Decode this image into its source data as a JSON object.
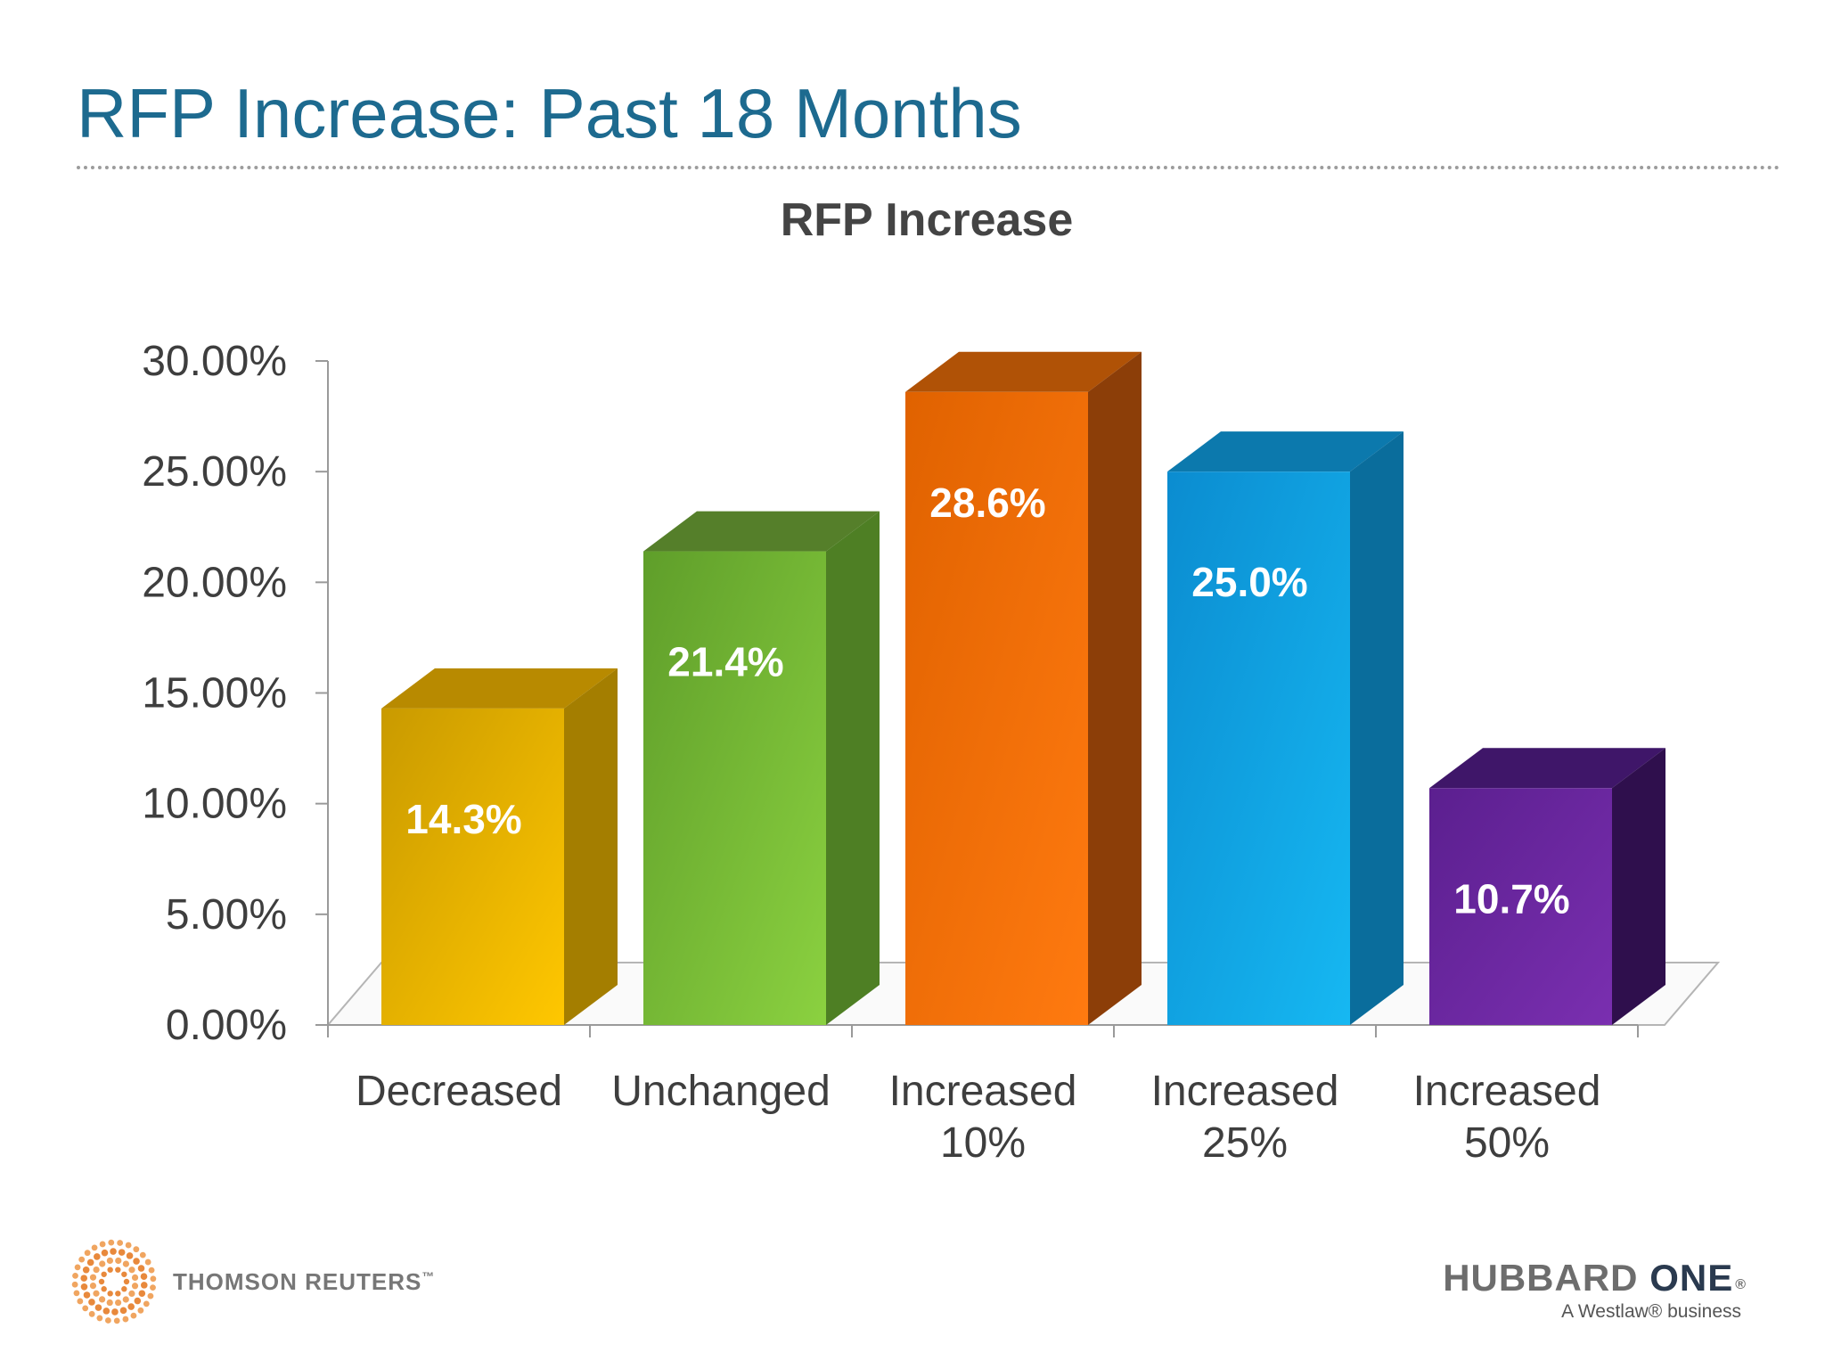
{
  "slide": {
    "title": "RFP Increase: Past 18 Months"
  },
  "chart_data": {
    "type": "bar",
    "title": "RFP Increase",
    "categories": [
      [
        "Decreased"
      ],
      [
        "Unchanged"
      ],
      [
        "Increased",
        "10%"
      ],
      [
        "Increased",
        "25%"
      ],
      [
        "Increased",
        "50%"
      ]
    ],
    "values": [
      14.3,
      21.4,
      28.6,
      25.0,
      10.7
    ],
    "data_labels": [
      "14.3%",
      "21.4%",
      "28.6%",
      "25.0%",
      "10.7%"
    ],
    "ylim": [
      0,
      30
    ],
    "yticks": [
      0,
      5,
      10,
      15,
      20,
      25,
      30
    ],
    "ytick_labels": [
      "0.00%",
      "5.00%",
      "10.00%",
      "15.00%",
      "20.00%",
      "25.00%",
      "30.00%"
    ],
    "xlabel": "",
    "ylabel": "",
    "legend": "none",
    "grid": false,
    "colors": [
      {
        "light": "#ffc700",
        "dark": "#c99a00",
        "side": "#a47e00",
        "top": "#b88a00"
      },
      {
        "light": "#8bd140",
        "dark": "#5f9e2a",
        "side": "#4e7f24",
        "top": "#557f2a"
      },
      {
        "light": "#ff7a10",
        "dark": "#e06200",
        "side": "#8c3e08",
        "top": "#b05206"
      },
      {
        "light": "#16b8f2",
        "dark": "#0b8cd0",
        "side": "#0a6d9c",
        "top": "#0c79ad"
      },
      {
        "light": "#7a2fb0",
        "dark": "#5b1f8f",
        "side": "#2f0f4d",
        "top": "#3f1669"
      }
    ]
  },
  "footer": {
    "left_logo": "THOMSON REUTERS",
    "left_logo_tm": "™",
    "right_logo_name_a": "HUBBARD",
    "right_logo_name_b": "ONE",
    "right_logo_reg": "®",
    "right_logo_tagline": "A Westlaw® business"
  }
}
